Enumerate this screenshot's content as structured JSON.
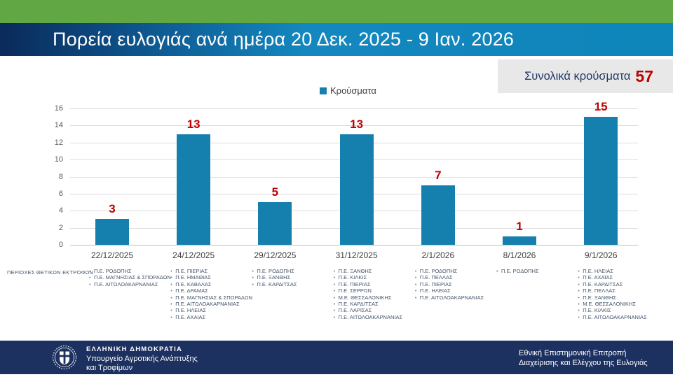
{
  "slide": {
    "title": "Πορεία ευλογιάς ανά ημέρα 20 Δεκ. 2025 - 9 Ιαν. 2026",
    "total_label": "Συνολικά κρούσματα",
    "total_value": "57"
  },
  "chart_data": {
    "type": "bar",
    "title": "",
    "legend": [
      "Κρούσματα"
    ],
    "legend_position": "top-center",
    "categories": [
      "22/12/2025",
      "24/12/2025",
      "29/12/2025",
      "31/12/2025",
      "2/1/2026",
      "8/1/2026",
      "9/1/2026"
    ],
    "values": [
      3,
      13,
      5,
      13,
      7,
      1,
      15
    ],
    "xlabel": "",
    "ylabel": "",
    "ylim": [
      0,
      16
    ],
    "ytick_step": 2,
    "yticks": [
      0,
      2,
      4,
      6,
      8,
      10,
      12,
      14,
      16
    ],
    "grid": true,
    "bar_color": "#1580ad",
    "value_label_color": "#c00000"
  },
  "regions": {
    "header": "ΠΕΡΙΟΧΕΣ ΘΕΤΙΚΩΝ ΕΚΤΡΟΦΩΝ",
    "columns": [
      [
        "Π.Ε. ΡΟΔΟΠΗΣ",
        "Π.Ε. ΜΑΓΝΗΣΙΑΣ & ΣΠΟΡΑΔΩΝ",
        "Π.Ε. ΑΙΤΩΛΟΑΚΑΡΝΑΝΙΑΣ"
      ],
      [
        "Π.Ε. ΠΙΕΡΙΑΣ",
        "Π.Ε. ΗΜΑΘΙΑΣ",
        "Π.Ε. ΚΑΒΑΛΑΣ",
        "Π.Ε. ΔΡΑΜΑΣ",
        "Π.Ε. ΜΑΓΝΗΣΙΑΣ & ΣΠΟΡΑΔΩΝ",
        "Π.Ε. ΑΙΤΩΛΟΑΚΑΡΝΑΝΙΑΣ",
        "Π.Ε. ΗΛΕΙΑΣ",
        "Π.Ε. ΑΧΑΙΑΣ"
      ],
      [
        "Π.Ε. ΡΟΔΟΠΗΣ",
        "Π.Ε. ΞΑΝΘΗΣ",
        "Π.Ε. ΚΑΡΔΙΤΣΑΣ"
      ],
      [
        "Π.Ε. ΞΑΝΘΗΣ",
        "Π.Ε. ΚΙΛΚΙΣ",
        "Π.Ε. ΠΙΕΡΙΑΣ",
        "Π.Ε. ΣΕΡΡΩΝ",
        "Μ.Ε. ΘΕΣΣΑΛΟΝΙΚΗΣ",
        "Π.Ε. ΚΑΡΔΙΤΣΑΣ",
        "Π.Ε. ΛΑΡΙΣΑΣ",
        "Π.Ε. ΑΙΤΩΛΟΑΚΑΡΝΑΝΙΑΣ"
      ],
      [
        "Π.Ε. ΡΟΔΟΠΗΣ",
        "Π.Ε. ΠΕΛΛΑΣ",
        "Π.Ε. ΠΙΕΡΙΑΣ",
        "Π.Ε. ΗΛΕΙΑΣ",
        "Π.Ε. ΑΙΤΩΛΟΑΚΑΡΝΑΝΙΑΣ"
      ],
      [
        "Π.Ε. ΡΟΔΟΠΗΣ"
      ],
      [
        "Π.Ε. ΗΛΕΙΑΣ",
        "Π.Ε. ΑΧΑΪΑΣ",
        "Π.Ε. ΚΑΡΔΙΤΣΑΣ",
        "Π.Ε. ΠΕΛΛΑΣ",
        "Π.Ε. ΞΑΝΘΗΣ",
        "Μ.Ε. ΘΕΣΣΑΛΟΝΙΚΗΣ",
        "Π.Ε. ΚΙΛΚΙΣ",
        "Π.Ε. ΑΙΤΩΛΟΑΚΑΡΝΑΝΙΑΣ"
      ]
    ]
  },
  "footer": {
    "emblem": "greek-coat-of-arms",
    "org_title": "ΕΛΛΗΝΙΚΗ ΔΗΜΟΚΡΑΤΙΑ",
    "org_line1": "Υπουργείο Αγροτικής Ανάπτυξης",
    "org_line2": "και Τροφίμων",
    "committee_line1": "Εθνική Επιστημονική Επιτροπή",
    "committee_line2": "Διαχείρισης και Ελέγχου της Ευλογιάς"
  },
  "colors": {
    "top_band_green": "#61a744",
    "title_bar_gradient_start": "#0a2a5a",
    "title_bar_gradient_end": "#0e86ba",
    "bar_blue": "#1580ad",
    "accent_red": "#c00000",
    "total_box_bg": "#e8e8e8",
    "total_label_navy": "#1f3864",
    "footer_navy": "#1d3160",
    "gridline_gray": "#dcdcdc",
    "axis_text_gray": "#595959",
    "region_text_slate": "#44546a"
  }
}
